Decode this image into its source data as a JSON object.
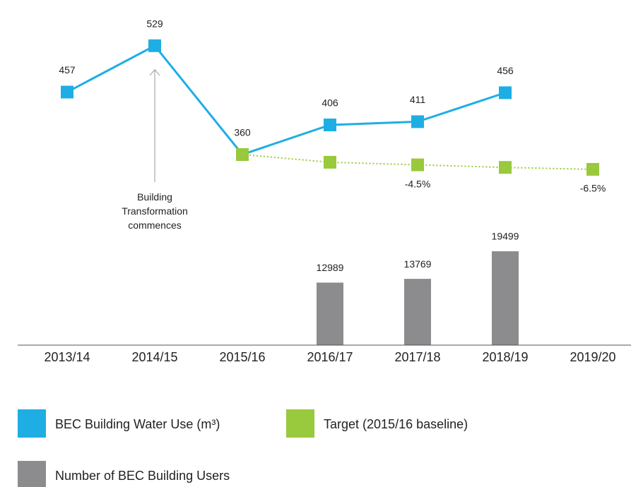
{
  "chart_data": {
    "type": "line",
    "categories": [
      "2013/14",
      "2014/15",
      "2015/16",
      "2016/17",
      "2017/18",
      "2018/19",
      "2019/20"
    ],
    "series": [
      {
        "name": "BEC Building Water Use (m³)",
        "type": "line",
        "color": "#1eaee4",
        "values": [
          457,
          529,
          360,
          406,
          411,
          456,
          null
        ],
        "labels": true
      },
      {
        "name": "Target (2015/16 baseline)",
        "type": "line",
        "dashed": true,
        "color": "#99c93c",
        "values": [
          null,
          null,
          360,
          348,
          344,
          340,
          337
        ]
      },
      {
        "name": "Number of BEC Building Users",
        "type": "bar",
        "axis": "y2",
        "color": "#8c8c8e",
        "values": [
          null,
          null,
          null,
          12989,
          13769,
          19499,
          null
        ],
        "labels": true
      }
    ],
    "ylim": [
      64,
      600
    ],
    "y2lim": [
      0,
      71700
    ],
    "annotations": [
      {
        "text": "-4.5%",
        "x": "2017/18"
      },
      {
        "text": "-6.5%",
        "x": "2019/20"
      },
      {
        "text": "Building Transformation commences",
        "x": "2014/15",
        "arrow": true
      }
    ]
  }
}
